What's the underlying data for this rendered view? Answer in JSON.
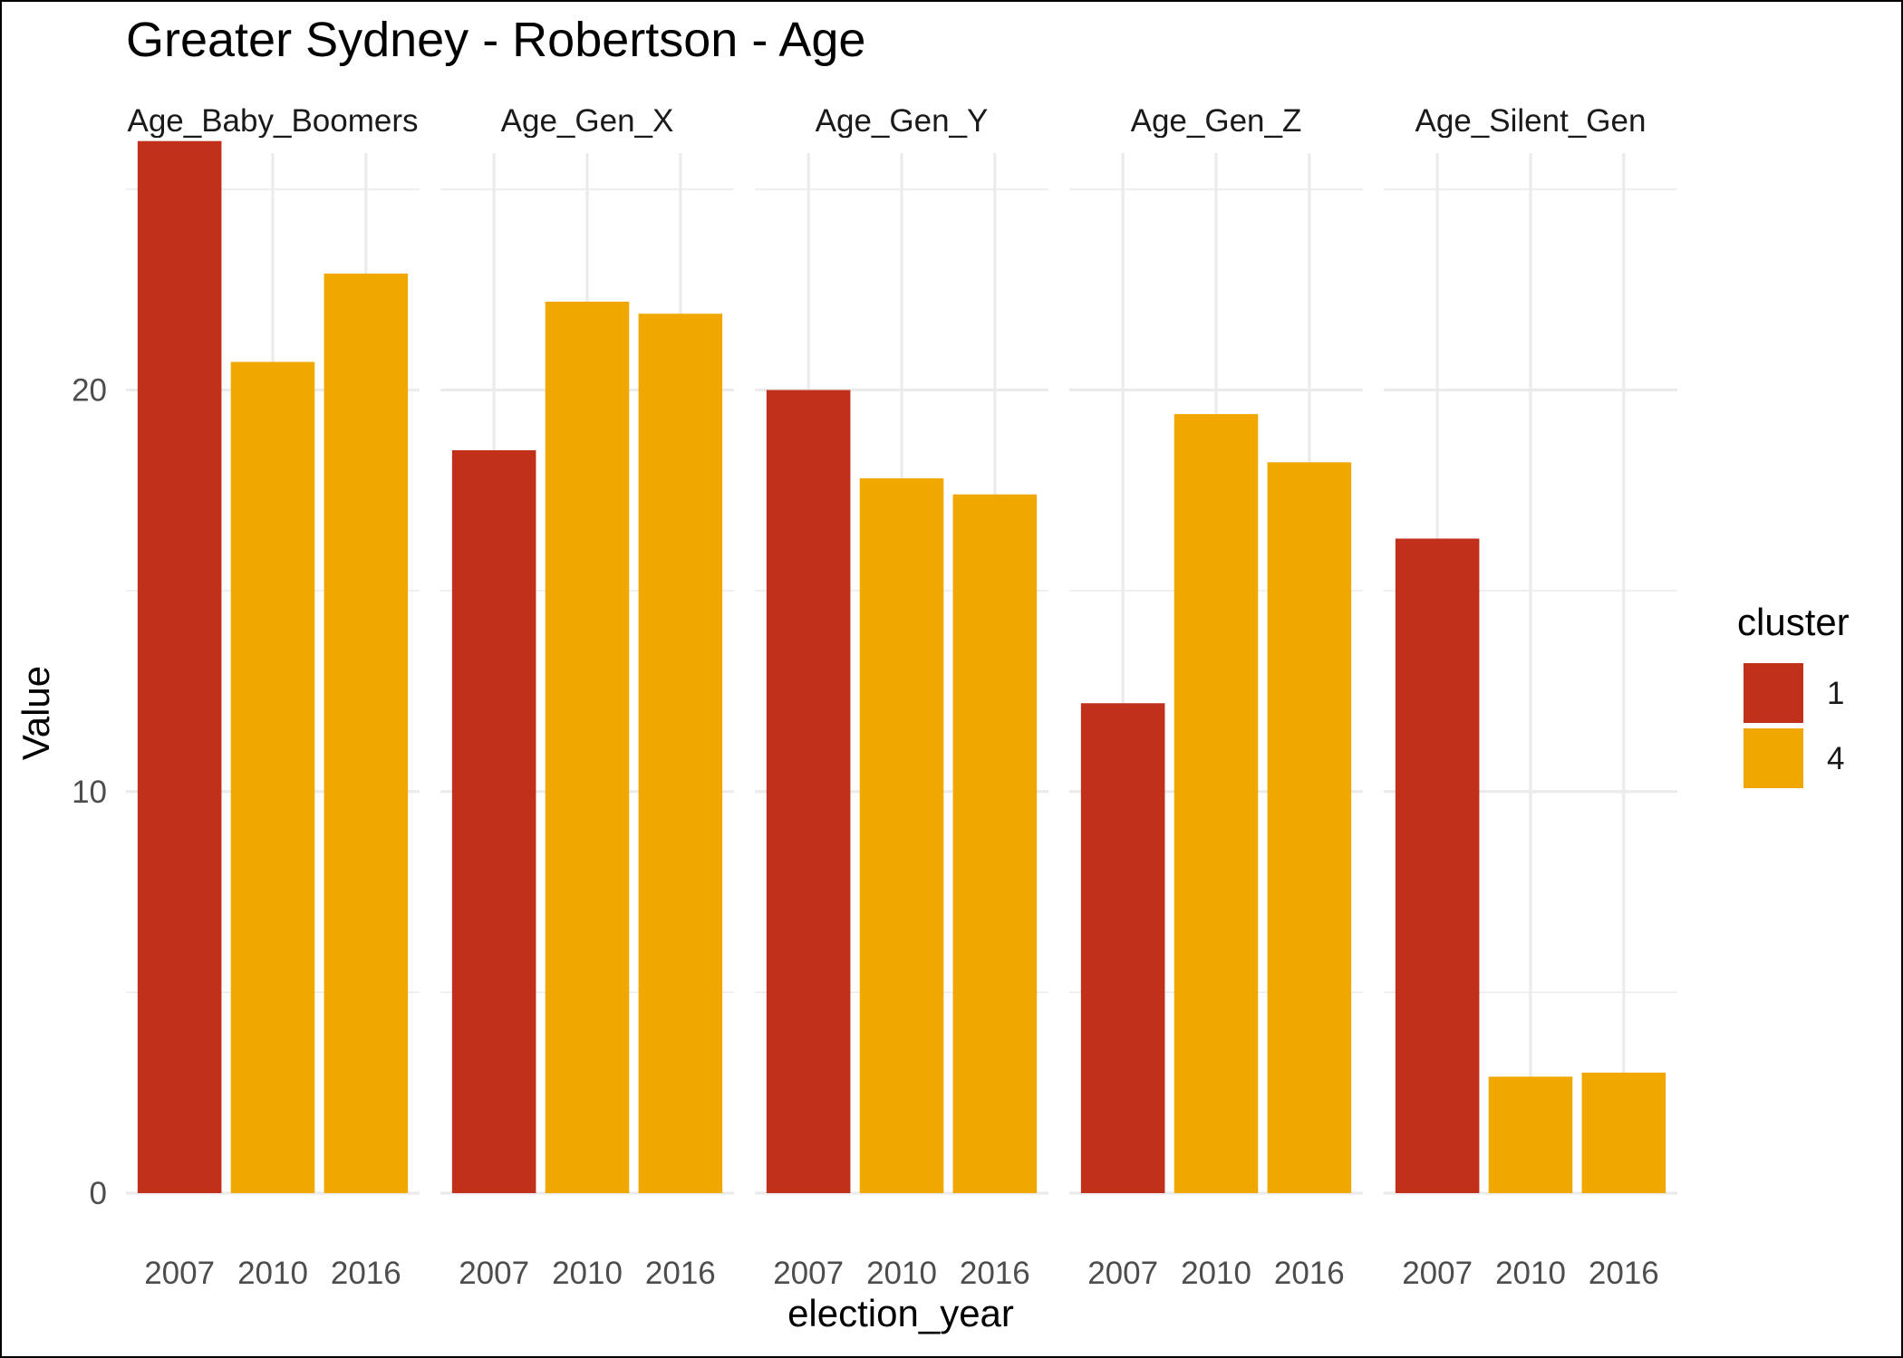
{
  "chart_data": {
    "type": "bar",
    "title": "Greater Sydney - Robertson - Age",
    "xlabel": "election_year",
    "ylabel": "Value",
    "ylim": [
      0,
      25.9
    ],
    "yticks": [
      "0",
      "10",
      "20"
    ],
    "grid": true,
    "legend": {
      "title": "cluster",
      "position": "right",
      "entries": [
        {
          "label": "1",
          "color": "#C0301A"
        },
        {
          "label": "4",
          "color": "#F0A800"
        }
      ]
    },
    "facets": [
      {
        "label": "Age_Baby_Boomers",
        "bars": [
          {
            "x": "2007",
            "value": 26.2,
            "cluster": "1"
          },
          {
            "x": "2010",
            "value": 20.7,
            "cluster": "4"
          },
          {
            "x": "2016",
            "value": 22.9,
            "cluster": "4"
          }
        ]
      },
      {
        "label": "Age_Gen_X",
        "bars": [
          {
            "x": "2007",
            "value": 18.5,
            "cluster": "1"
          },
          {
            "x": "2010",
            "value": 22.2,
            "cluster": "4"
          },
          {
            "x": "2016",
            "value": 21.9,
            "cluster": "4"
          }
        ]
      },
      {
        "label": "Age_Gen_Y",
        "bars": [
          {
            "x": "2007",
            "value": 20.0,
            "cluster": "1"
          },
          {
            "x": "2010",
            "value": 17.8,
            "cluster": "4"
          },
          {
            "x": "2016",
            "value": 17.4,
            "cluster": "4"
          }
        ]
      },
      {
        "label": "Age_Gen_Z",
        "bars": [
          {
            "x": "2007",
            "value": 12.2,
            "cluster": "1"
          },
          {
            "x": "2010",
            "value": 19.4,
            "cluster": "4"
          },
          {
            "x": "2016",
            "value": 18.2,
            "cluster": "4"
          }
        ]
      },
      {
        "label": "Age_Silent_Gen",
        "bars": [
          {
            "x": "2007",
            "value": 16.3,
            "cluster": "1"
          },
          {
            "x": "2010",
            "value": 2.9,
            "cluster": "4"
          },
          {
            "x": "2016",
            "value": 3.0,
            "cluster": "4"
          }
        ]
      }
    ]
  }
}
